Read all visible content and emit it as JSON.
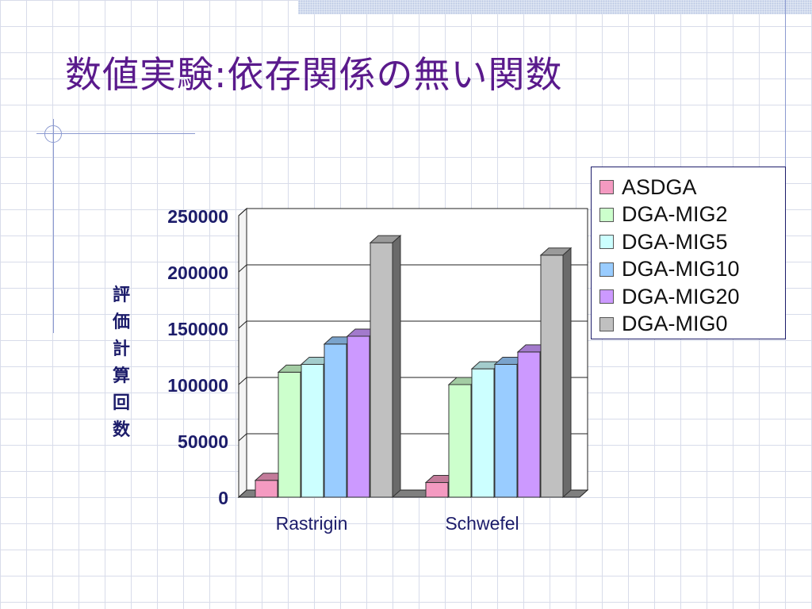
{
  "slide": {
    "title": "数値実験:依存関係の無い関数"
  },
  "chart_data": {
    "type": "bar",
    "title": "",
    "xlabel": "",
    "ylabel": "評価計算回数",
    "ylim": [
      0,
      250000
    ],
    "yticks": [
      0,
      50000,
      100000,
      150000,
      200000,
      250000
    ],
    "ytick_labels": [
      "0",
      "50000",
      "100000",
      "150000",
      "200000",
      "250000"
    ],
    "categories": [
      "Rastrigin",
      "Schwefel"
    ],
    "series": [
      {
        "name": "ASDGA",
        "color": "#f49ac1",
        "values": [
          15000,
          13000
        ]
      },
      {
        "name": "DGA-MIG2",
        "color": "#ccffcc",
        "values": [
          111000,
          100000
        ]
      },
      {
        "name": "DGA-MIG5",
        "color": "#ccffff",
        "values": [
          118000,
          114000
        ]
      },
      {
        "name": "DGA-MIG10",
        "color": "#99ccff",
        "values": [
          136000,
          118000
        ]
      },
      {
        "name": "DGA-MIG20",
        "color": "#cc99ff",
        "values": [
          143000,
          129000
        ]
      },
      {
        "name": "DGA-MIG0",
        "color": "#c0c0c0",
        "values": [
          226000,
          215000
        ]
      }
    ],
    "grid": true,
    "style": "3d-clustered-column",
    "legend_position": "right"
  }
}
